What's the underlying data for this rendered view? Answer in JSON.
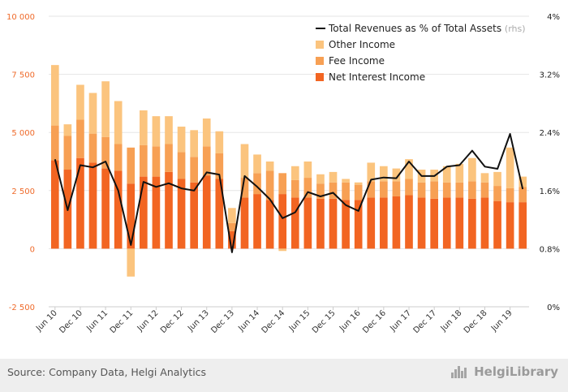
{
  "chart_data": {
    "type": "bar",
    "stacked": true,
    "categories": [
      "Jun 10",
      "Sep 10",
      "Dec 10",
      "Mar 11",
      "Jun 11",
      "Sep 11",
      "Dec 11",
      "Mar 12",
      "Jun 12",
      "Sep 12",
      "Dec 12",
      "Mar 13",
      "Jun 13",
      "Sep 13",
      "Dec 13",
      "Mar 14",
      "Jun 14",
      "Sep 14",
      "Dec 14",
      "Mar 15",
      "Jun 15",
      "Sep 15",
      "Dec 15",
      "Mar 16",
      "Jun 16",
      "Sep 16",
      "Dec 16",
      "Mar 17",
      "Jun 17",
      "Sep 17",
      "Dec 17",
      "Mar 18",
      "Jun 18",
      "Sep 18",
      "Dec 18",
      "Mar 19",
      "Jun 19",
      "Sep 19"
    ],
    "x_tick_labels": [
      "Jun 10",
      "Dec 10",
      "Jun 11",
      "Dec 11",
      "Jun 12",
      "Dec 12",
      "Jun 13",
      "Dec 13",
      "Jun 14",
      "Dec 14",
      "Jun 15",
      "Dec 15",
      "Jun 16",
      "Dec 16",
      "Jun 17",
      "Dec 17",
      "Jun 18",
      "Dec 18",
      "Jun 19"
    ],
    "series": [
      {
        "name": "Net Interest Income",
        "color": "#f26522",
        "axis": "left",
        "values": [
          3800,
          3400,
          3900,
          3700,
          3450,
          3350,
          2800,
          3100,
          3100,
          3300,
          3000,
          2850,
          3150,
          3000,
          750,
          2200,
          2350,
          2100,
          2350,
          2200,
          2200,
          2150,
          2150,
          2100,
          2100,
          2200,
          2200,
          2250,
          2300,
          2200,
          2150,
          2200,
          2200,
          2150,
          2200,
          2050,
          2000,
          2000
        ]
      },
      {
        "name": "Fee Income",
        "color": "#f7a054",
        "axis": "left",
        "values": [
          1500,
          1450,
          1650,
          1250,
          1350,
          1150,
          1550,
          1350,
          1300,
          1200,
          1150,
          1100,
          1250,
          1100,
          350,
          850,
          900,
          1250,
          900,
          750,
          850,
          650,
          700,
          750,
          650,
          700,
          700,
          650,
          700,
          650,
          750,
          650,
          650,
          750,
          650,
          650,
          600,
          650
        ]
      },
      {
        "name": "Other Income",
        "color": "#fbc47e",
        "axis": "left",
        "values": [
          2600,
          500,
          1500,
          1750,
          2400,
          1850,
          -1200,
          1500,
          1300,
          1200,
          1100,
          1150,
          1200,
          950,
          650,
          1450,
          800,
          400,
          -100,
          600,
          700,
          400,
          450,
          150,
          100,
          800,
          650,
          550,
          850,
          550,
          500,
          700,
          800,
          1000,
          400,
          600,
          1750,
          450
        ]
      },
      {
        "name": "Total Revenues as % of Total Assets",
        "color": "#111111",
        "axis": "right",
        "type": "line",
        "values": [
          2.03,
          1.33,
          1.95,
          1.92,
          2.0,
          1.6,
          0.85,
          1.72,
          1.65,
          1.7,
          1.63,
          1.6,
          1.85,
          1.82,
          0.75,
          1.8,
          1.65,
          1.48,
          1.22,
          1.3,
          1.58,
          1.52,
          1.57,
          1.4,
          1.32,
          1.75,
          1.78,
          1.77,
          2.0,
          1.8,
          1.8,
          1.93,
          1.95,
          2.15,
          1.93,
          1.9,
          2.38,
          1.62
        ]
      }
    ],
    "ylim": [
      -2500,
      10000
    ],
    "y_ticks": [
      "-2 500",
      "0",
      "2 500",
      "5 000",
      "7 500",
      "10 000"
    ],
    "y2lim": [
      0,
      4
    ],
    "y2_ticks": [
      "0%",
      "0.8%",
      "1.6%",
      "2.4%",
      "3.2%",
      "4%"
    ],
    "legend_position": "top-right",
    "grid": "horizontal"
  },
  "legend": {
    "line_label": "Total Revenues as % of Total Assets",
    "line_unit": "(rhs)",
    "other_label": "Other Income",
    "fee_label": "Fee Income",
    "nii_label": "Net Interest Income"
  },
  "footer": {
    "source": "Source: Company Data, Helgi Analytics",
    "brand": "HelgiLibrary"
  },
  "colors": {
    "axis_text_left": "#ef6a2a",
    "grid": "#e5e5e5",
    "footer_bg": "#eeeeee"
  }
}
